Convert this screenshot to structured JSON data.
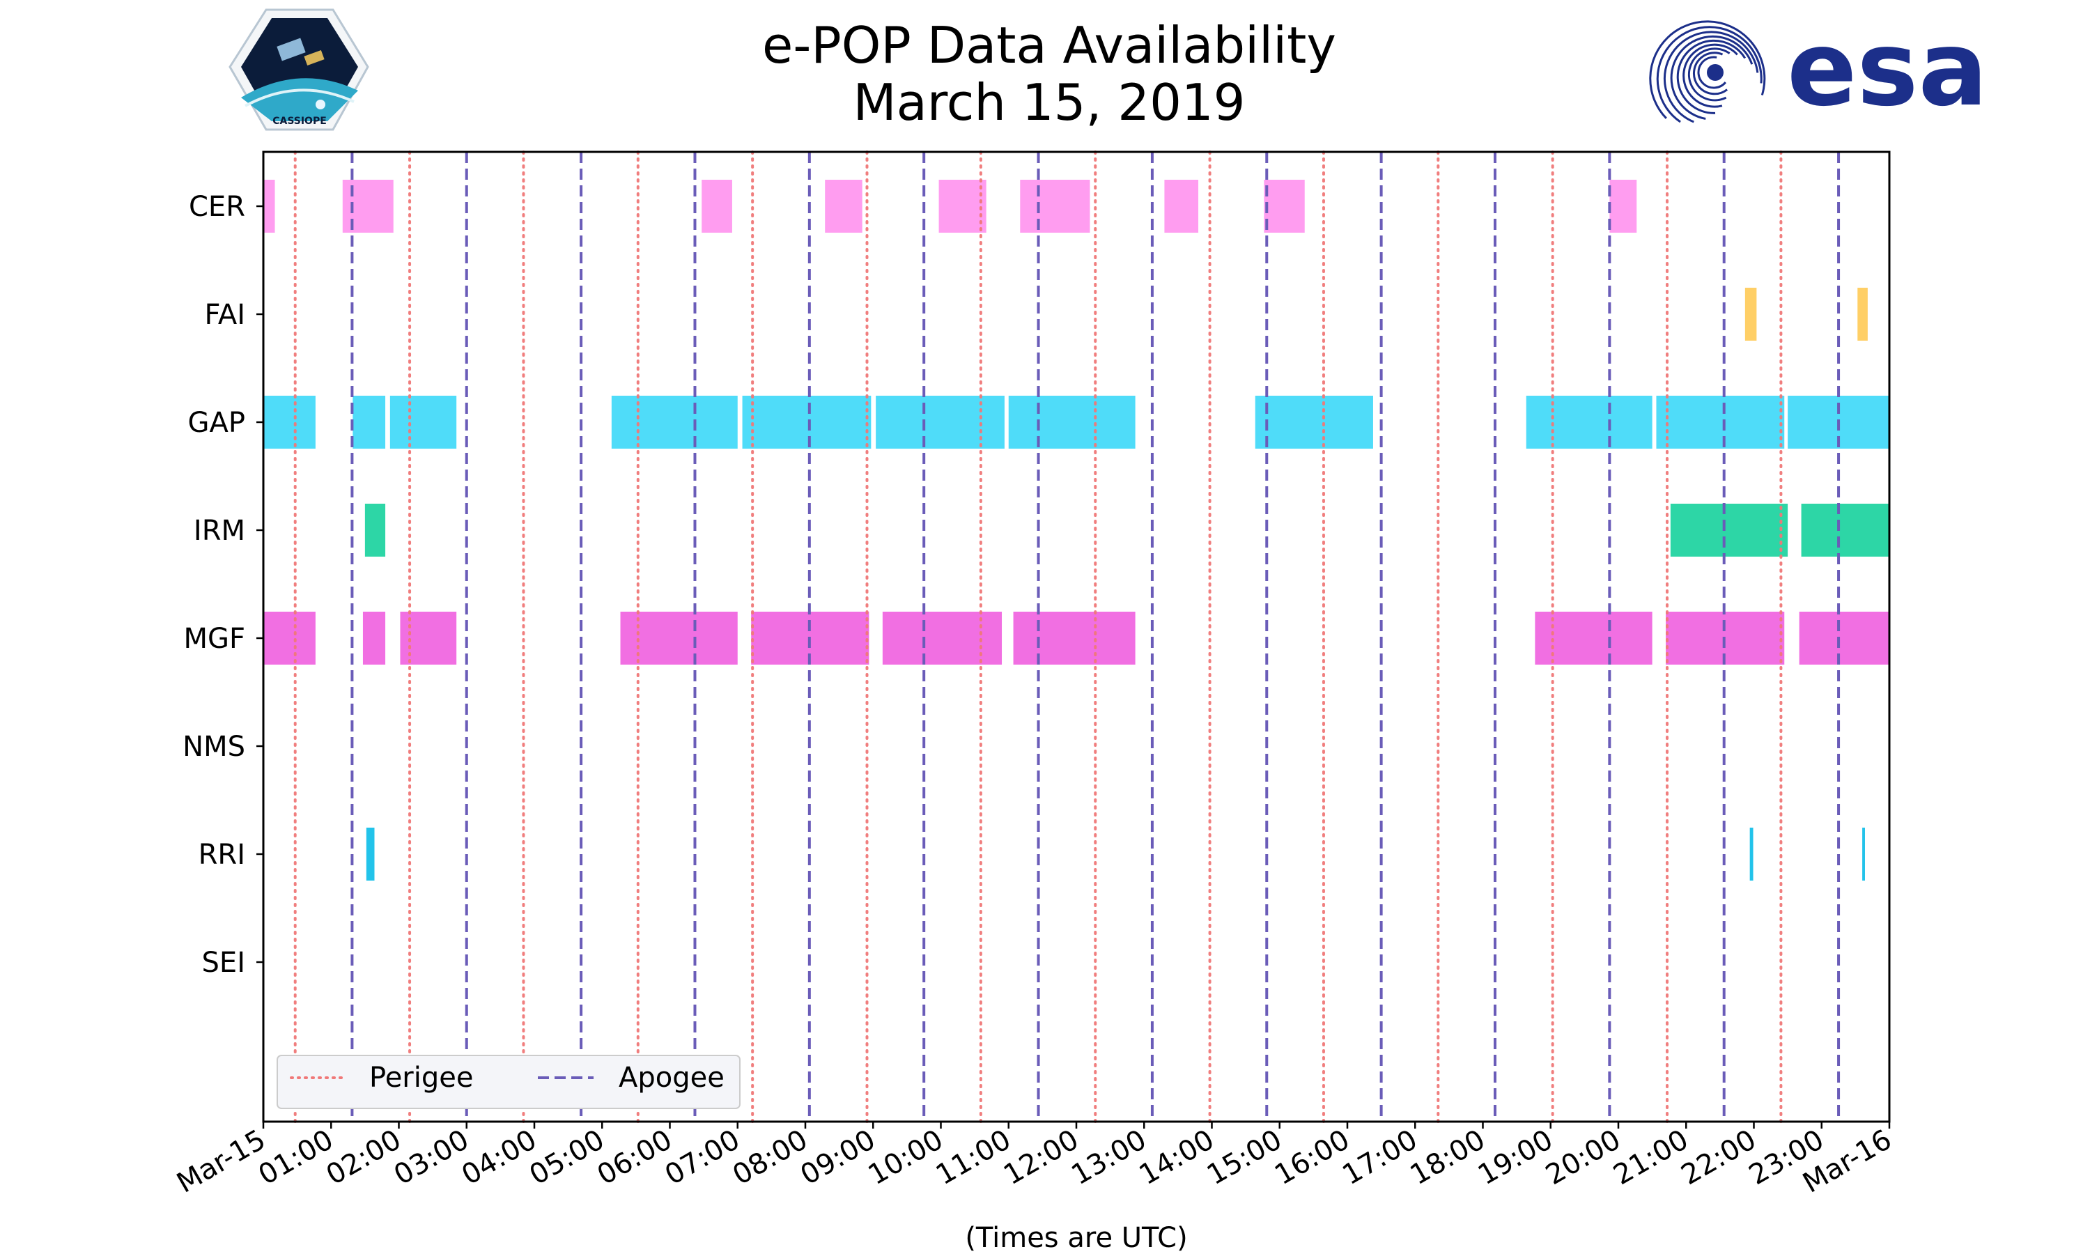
{
  "chart_data": {
    "type": "timeline",
    "title": "e-POP Data Availability",
    "subtitle": "March 15, 2019",
    "xlabel": "(Times are UTC)",
    "x_unit": "hours since 2019-03-15 00:00 UTC",
    "xlim": [
      0,
      24
    ],
    "x_tick_labels": [
      "Mar-15",
      "01:00",
      "02:00",
      "03:00",
      "04:00",
      "05:00",
      "06:00",
      "07:00",
      "08:00",
      "09:00",
      "10:00",
      "11:00",
      "12:00",
      "13:00",
      "14:00",
      "15:00",
      "16:00",
      "17:00",
      "18:00",
      "19:00",
      "20:00",
      "21:00",
      "22:00",
      "23:00",
      "Mar-16"
    ],
    "instruments": [
      "CER",
      "FAI",
      "GAP",
      "IRM",
      "MGF",
      "NMS",
      "RRI",
      "SEI"
    ],
    "perigee_hours": [
      0.47,
      2.16,
      3.84,
      5.53,
      7.22,
      8.91,
      10.59,
      12.28,
      13.97,
      15.65,
      17.34,
      19.03,
      20.72,
      22.4
    ],
    "apogee_hours": [
      1.31,
      3.0,
      4.69,
      6.37,
      8.06,
      9.75,
      11.44,
      13.12,
      14.81,
      16.5,
      18.18,
      19.87,
      21.56,
      23.25
    ],
    "series": [
      {
        "name": "CER",
        "color": "#ff9df0",
        "intervals": [
          [
            0,
            0.17
          ],
          [
            1.17,
            1.92
          ],
          [
            6.47,
            6.92
          ],
          [
            8.29,
            8.84
          ],
          [
            9.97,
            10.67
          ],
          [
            11.17,
            12.2
          ],
          [
            13.3,
            13.8
          ],
          [
            14.77,
            15.37
          ],
          [
            19.87,
            20.27
          ]
        ]
      },
      {
        "name": "FAI",
        "color": "#ffcf66",
        "intervals": [
          [
            21.87,
            22.04
          ],
          [
            23.53,
            23.68
          ]
        ]
      },
      {
        "name": "GAP",
        "color": "#4fdcf9",
        "intervals": [
          [
            0,
            0.77
          ],
          [
            1.32,
            1.8
          ],
          [
            1.87,
            2.85
          ],
          [
            5.14,
            7.0
          ],
          [
            7.07,
            8.97
          ],
          [
            9.04,
            10.94
          ],
          [
            11.0,
            12.87
          ],
          [
            14.64,
            16.38
          ],
          [
            18.64,
            20.5
          ],
          [
            20.56,
            22.45
          ],
          [
            22.5,
            24
          ]
        ]
      },
      {
        "name": "IRM",
        "color": "#2dd6a6",
        "intervals": [
          [
            1.5,
            1.8
          ],
          [
            20.77,
            22.5
          ],
          [
            22.7,
            24
          ]
        ]
      },
      {
        "name": "MGF",
        "color": "#f16fe2",
        "intervals": [
          [
            0,
            0.77
          ],
          [
            1.47,
            1.8
          ],
          [
            2.02,
            2.85
          ],
          [
            5.27,
            7.0
          ],
          [
            7.2,
            8.94
          ],
          [
            9.14,
            10.9
          ],
          [
            11.07,
            12.87
          ],
          [
            18.77,
            20.5
          ],
          [
            20.7,
            22.45
          ],
          [
            22.67,
            24
          ]
        ]
      },
      {
        "name": "NMS",
        "color": "#aaaaaa",
        "intervals": []
      },
      {
        "name": "RRI",
        "color": "#22c3ea",
        "intervals": [
          [
            1.52,
            1.64
          ],
          [
            21.94,
            21.99
          ],
          [
            23.6,
            23.64
          ]
        ]
      },
      {
        "name": "SEI",
        "color": "#aaaaaa",
        "intervals": []
      }
    ],
    "legend": {
      "position": "lower-left",
      "entries": [
        {
          "label": "Perigee",
          "color": "#f07878",
          "style": "dotted"
        },
        {
          "label": "Apogee",
          "color": "#6a5cb8",
          "style": "dashed"
        }
      ]
    }
  },
  "logos": {
    "cassiope_text": "CASSIOPE",
    "esa_text": "esa",
    "esa_color": "#1c2f8a"
  }
}
